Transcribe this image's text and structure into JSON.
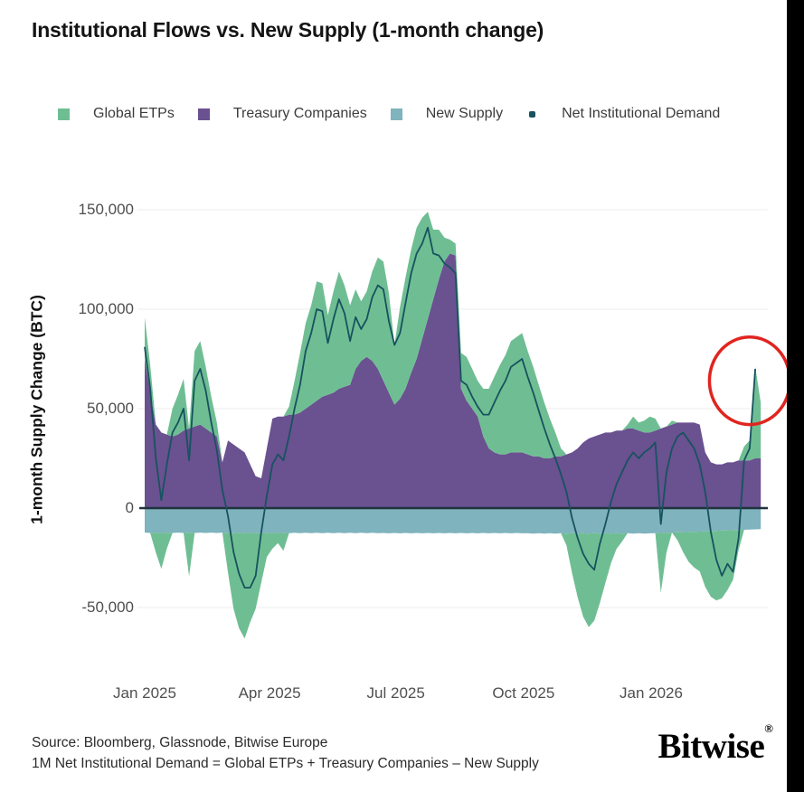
{
  "title": "Institutional Flows vs. New Supply (1-month change)",
  "legend": [
    {
      "label": "Global ETPs",
      "color": "#6fbe93",
      "marker": "square"
    },
    {
      "label": "Treasury Companies",
      "color": "#6a5190",
      "marker": "square"
    },
    {
      "label": "New Supply",
      "color": "#7fb3bd",
      "marker": "square"
    },
    {
      "label": "Net Institutional Demand",
      "color": "#17525f",
      "marker": "dot"
    }
  ],
  "y_axis": {
    "title": "1-month Supply Change (BTC)",
    "ticks": [
      {
        "label": "150,000",
        "value": 150
      },
      {
        "label": "100,000",
        "value": 100
      },
      {
        "label": "50,000",
        "value": 50
      },
      {
        "label": "0",
        "value": 0
      },
      {
        "label": "-50,000",
        "value": -50
      }
    ]
  },
  "x_axis": {
    "ticks": [
      {
        "label": "Jan 2025",
        "day": 0
      },
      {
        "label": "Apr 2025",
        "day": 90
      },
      {
        "label": "Jul 2025",
        "day": 181
      },
      {
        "label": "Oct 2025",
        "day": 273
      },
      {
        "label": "Jan 2026",
        "day": 365
      }
    ]
  },
  "footer": {
    "source_line1": "Source: Bloomberg, Glassnode, Bitwise Europe",
    "source_line2": "1M Net Institutional Demand = Global ETPs + Treasury Companies – New Supply",
    "brand": "Bitwise",
    "brand_reg": "®"
  },
  "annotation": {
    "type": "highlight-circle",
    "center_day": 436,
    "center_value": 64,
    "radius_days": 29,
    "radius_value": 22,
    "color": "#e02520"
  },
  "chart_data": {
    "type": "area",
    "subtype": "stacked-with-negative-stack-and-net-line",
    "units": "thousand BTC",
    "ylabel": "1-month Supply Change (BTC)",
    "ylim": [
      -75,
      160
    ],
    "grid": "horizontal-only",
    "zero_line": true,
    "x_days": {
      "start": 0,
      "step": 4,
      "count": 112,
      "epoch": "2025-01-01"
    },
    "series": [
      {
        "name": "Global ETPs",
        "kind": "area",
        "color": "#6fbe93",
        "values": [
          21,
          14,
          -10,
          -18,
          -8,
          14,
          20,
          26,
          -22,
          38,
          42,
          31,
          18,
          7,
          0,
          -20,
          -38,
          -48,
          -53,
          -45,
          -38,
          -25,
          -12,
          -8,
          -5,
          -9,
          4,
          17,
          30,
          43,
          50,
          60,
          57,
          40,
          51,
          59,
          51,
          40,
          40,
          30,
          33,
          45,
          56,
          60,
          50,
          30,
          46,
          56,
          62,
          66,
          61,
          54,
          35,
          25,
          12,
          7,
          6,
          18,
          22,
          20,
          18,
          24,
          30,
          38,
          45,
          50,
          56,
          58,
          60,
          52,
          45,
          36,
          28,
          20,
          12,
          4,
          -6,
          -20,
          -32,
          -42,
          -47,
          -44,
          -35,
          -25,
          -15,
          -8,
          -4,
          2,
          6,
          4,
          6,
          8,
          6,
          -30,
          -10,
          2,
          -4,
          -10,
          -15,
          -18,
          -20,
          -28,
          -33,
          -35,
          -34,
          -30,
          -25,
          -10,
          7,
          10,
          46,
          28
        ]
      },
      {
        "name": "Treasury Companies",
        "kind": "area",
        "color": "#6a5190",
        "values": [
          75,
          58,
          42,
          38,
          37,
          36,
          37,
          39,
          40,
          41,
          42,
          40,
          38,
          36,
          23,
          34,
          32,
          30,
          28,
          22,
          16,
          15,
          30,
          45,
          46,
          46,
          47,
          47,
          48,
          50,
          52,
          54,
          56,
          57,
          58,
          60,
          61,
          62,
          70,
          74,
          76,
          74,
          70,
          64,
          58,
          52,
          55,
          60,
          68,
          75,
          85,
          95,
          105,
          115,
          124,
          128,
          127,
          60,
          54,
          50,
          46,
          36,
          30,
          28,
          27,
          27,
          28,
          28,
          28,
          27,
          26,
          26,
          25,
          25,
          26,
          26,
          27,
          28,
          30,
          33,
          35,
          36,
          37,
          38,
          38,
          39,
          39,
          40,
          40,
          39,
          38,
          38,
          39,
          40,
          41,
          42,
          43,
          43,
          43,
          43,
          42,
          28,
          23,
          22,
          22,
          23,
          23,
          24,
          24,
          24,
          25,
          25
        ]
      },
      {
        "name": "New Supply",
        "kind": "area",
        "color": "#7fb3bd",
        "values": [
          -12.3,
          -12.5,
          -12.3,
          -12.5,
          -12.3,
          -12.5,
          -12.3,
          -12.5,
          -12.3,
          -12.5,
          -12.3,
          -12.5,
          -12.3,
          -12.5,
          -12.3,
          -12.4,
          -12.6,
          -12.4,
          -12.6,
          -12.4,
          -12.6,
          -12.4,
          -12.6,
          -12.4,
          -12.6,
          -12.4,
          -12.6,
          -12.4,
          -12.6,
          -12.4,
          -12.6,
          -12.4,
          -12.6,
          -12.4,
          -12.6,
          -12.4,
          -12.6,
          -12.4,
          -12.6,
          -12.4,
          -12.6,
          -12.4,
          -12.6,
          -12.5,
          -12.7,
          -12.5,
          -12.7,
          -12.5,
          -12.7,
          -12.5,
          -12.7,
          -12.5,
          -12.7,
          -12.5,
          -12.7,
          -12.5,
          -12.7,
          -12.5,
          -12.7,
          -12.5,
          -12.7,
          -12.5,
          -12.7,
          -12.5,
          -12.7,
          -12.5,
          -12.7,
          -12.5,
          -12.7,
          -12.6,
          -12.8,
          -12.6,
          -12.8,
          -12.6,
          -12.8,
          -12.6,
          -12.8,
          -12.6,
          -12.8,
          -12.6,
          -12.8,
          -12.6,
          -12.8,
          -12.6,
          -12.8,
          -12.6,
          -12.8,
          -12.6,
          -12.8,
          -12.6,
          -12.8,
          -12.7,
          -12.6,
          -12.5,
          -12.4,
          -12.3,
          -12.2,
          -12.1,
          -12.0,
          -11.9,
          -11.8,
          -11.7,
          -11.6,
          -11.4,
          -11.3,
          -11.2,
          -11.1,
          -11.0,
          -10.9,
          -10.8,
          -10.7,
          -10.6
        ]
      },
      {
        "name": "Net Institutional Demand",
        "kind": "line",
        "color": "#17525f",
        "values": [
          81,
          60,
          25,
          4,
          22,
          38,
          43,
          50,
          24,
          64,
          70,
          59,
          43,
          29,
          9,
          -4,
          -22,
          -33,
          -40,
          -40,
          -34,
          -12,
          6,
          22,
          27,
          24,
          36,
          50,
          62,
          79,
          88,
          100,
          99,
          83,
          95,
          105,
          98,
          84,
          96,
          90,
          95,
          106,
          112,
          110,
          94,
          82,
          88,
          103,
          118,
          128,
          133,
          141,
          128,
          127,
          123,
          121,
          118,
          64,
          62,
          56,
          51,
          47,
          47,
          53,
          59,
          64,
          71,
          73,
          75,
          66,
          58,
          49,
          40,
          32,
          25,
          17,
          8,
          -5,
          -15,
          -23,
          -28,
          -31,
          -18,
          -8,
          3,
          12,
          18,
          24,
          28,
          25,
          28,
          30,
          33,
          -8,
          18,
          30,
          36,
          38,
          34,
          30,
          22,
          8,
          -12,
          -26,
          -34,
          -28,
          -32,
          -15,
          24,
          30,
          70,
          null
        ]
      }
    ]
  }
}
